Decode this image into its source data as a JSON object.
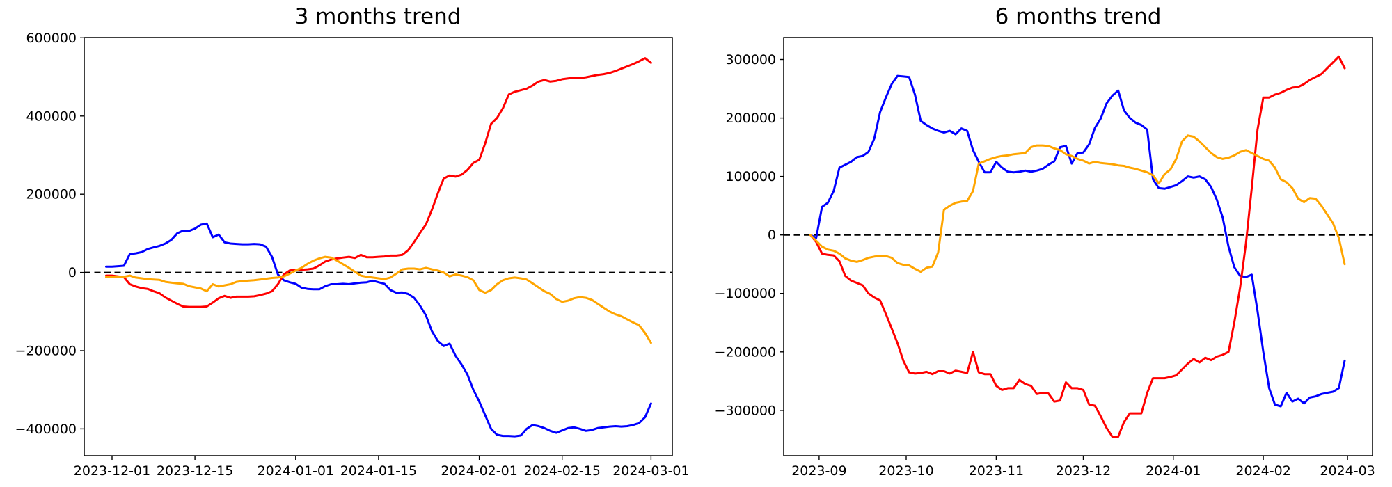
{
  "page": {
    "background": "#ffffff",
    "text_color": "#000000"
  },
  "chart_data": [
    {
      "panel": "left",
      "type": "line",
      "title": "3 months trend",
      "grid": false,
      "legend": null,
      "zero_line": {
        "value": 0,
        "style": "dashed",
        "color": "#000000"
      },
      "x_axis": {
        "day_range": [
          -3.7,
          95.6
        ],
        "tick_days": [
          1,
          15,
          32,
          46,
          63,
          77,
          92
        ],
        "tick_labels": [
          "2023-12-01",
          "2023-12-15",
          "2024-01-01",
          "2024-01-15",
          "2024-02-01",
          "2024-02-15",
          "2024-03-01"
        ]
      },
      "y_axis": {
        "ylim": [
          -468600,
          600600
        ],
        "tick_values": [
          600000,
          400000,
          200000,
          0,
          -200000,
          -400000
        ],
        "tick_labels": [
          "600000",
          "400000",
          "200000",
          "0",
          "−200000",
          "−400000"
        ]
      },
      "series": [
        {
          "name": "blue",
          "color": "#0000ff",
          "day_start": 0,
          "day_step": 1,
          "values": [
            15000,
            15000,
            16000,
            17000,
            47000,
            49000,
            52000,
            60000,
            64000,
            68000,
            74000,
            83000,
            100000,
            107000,
            106000,
            112000,
            122000,
            125000,
            90000,
            97000,
            77000,
            74000,
            73000,
            72000,
            72000,
            73000,
            72000,
            66000,
            40000,
            -5000,
            -20000,
            -25000,
            -29000,
            -39000,
            -42000,
            -43000,
            -43000,
            -35000,
            -30000,
            -30000,
            -29000,
            -30000,
            -28000,
            -26000,
            -25000,
            -21000,
            -25000,
            -29000,
            -45000,
            -52000,
            -51000,
            -55000,
            -65000,
            -85000,
            -110000,
            -150000,
            -175000,
            -188000,
            -182000,
            -213000,
            -235000,
            -261000,
            -300000,
            -330000,
            -365000,
            -400000,
            -415000,
            -418000,
            -418000,
            -419000,
            -417000,
            -400000,
            -390000,
            -393000,
            -398000,
            -405000,
            -410000,
            -404000,
            -398000,
            -396000,
            -400000,
            -405000,
            -403000,
            -398000,
            -396000,
            -394000,
            -393000,
            -394000,
            -393000,
            -390000,
            -385000,
            -370000,
            -335000
          ]
        },
        {
          "name": "red",
          "color": "#ff0000",
          "day_start": 0,
          "day_step": 1,
          "values": [
            -8000,
            -8000,
            -10000,
            -12000,
            -30000,
            -36000,
            -40000,
            -42000,
            -48000,
            -53000,
            -64000,
            -72000,
            -80000,
            -87000,
            -88000,
            -88000,
            -88000,
            -87000,
            -77000,
            -66000,
            -60000,
            -65000,
            -62000,
            -62000,
            -62000,
            -61000,
            -58000,
            -54000,
            -48000,
            -30000,
            -5000,
            5000,
            7000,
            7000,
            8000,
            10000,
            18000,
            28000,
            33000,
            36000,
            38000,
            40000,
            37000,
            45000,
            39000,
            39000,
            40000,
            41000,
            43000,
            43000,
            45000,
            57000,
            78000,
            101000,
            123000,
            160000,
            202000,
            240000,
            248000,
            245000,
            250000,
            262000,
            280000,
            288000,
            330000,
            380000,
            395000,
            420000,
            455000,
            462000,
            466000,
            470000,
            478000,
            488000,
            492000,
            488000,
            490000,
            494000,
            496000,
            498000,
            497000,
            499000,
            502000,
            505000,
            507000,
            510000,
            515000,
            521000,
            527000,
            533000,
            540000,
            548000,
            536000
          ]
        },
        {
          "name": "orange",
          "color": "#ffa500",
          "day_start": 0,
          "day_step": 1,
          "values": [
            -12000,
            -12000,
            -12000,
            -11000,
            -8000,
            -13000,
            -15000,
            -17000,
            -18000,
            -19000,
            -24000,
            -26000,
            -28000,
            -29000,
            -35000,
            -38000,
            -41000,
            -48000,
            -30000,
            -36000,
            -33000,
            -30000,
            -24000,
            -22000,
            -21000,
            -20000,
            -18000,
            -16000,
            -14000,
            -13000,
            -10000,
            -3000,
            5000,
            12000,
            22000,
            30000,
            36000,
            40000,
            38000,
            30000,
            21000,
            12000,
            2000,
            -8000,
            -11000,
            -13000,
            -15000,
            -17000,
            -13000,
            -3000,
            8000,
            10000,
            10000,
            8000,
            12000,
            8000,
            5000,
            0,
            -10000,
            -5000,
            -8000,
            -12000,
            -20000,
            -45000,
            -52000,
            -45000,
            -30000,
            -20000,
            -15000,
            -13000,
            -15000,
            -18000,
            -28000,
            -38000,
            -48000,
            -55000,
            -68000,
            -75000,
            -72000,
            -66000,
            -63000,
            -65000,
            -70000,
            -80000,
            -90000,
            -100000,
            -107000,
            -112000,
            -120000,
            -128000,
            -135000,
            -155000,
            -180000
          ]
        }
      ]
    },
    {
      "panel": "right",
      "type": "line",
      "title": "6 months trend",
      "grid": false,
      "legend": null,
      "zero_line": {
        "value": 0,
        "style": "dashed",
        "color": "#000000"
      },
      "x_axis": {
        "day_range": [
          -9.2,
          193.6
        ],
        "tick_days": [
          3,
          33,
          64,
          94,
          125,
          156,
          185
        ],
        "tick_labels": [
          "2023-09",
          "2023-10",
          "2023-11",
          "2023-12",
          "2024-01",
          "2024-02",
          "2024-03"
        ]
      },
      "y_axis": {
        "ylim": [
          -377500,
          337500
        ],
        "tick_values": [
          300000,
          200000,
          100000,
          0,
          -100000,
          -200000,
          -300000
        ],
        "tick_labels": [
          "300000",
          "200000",
          "100000",
          "0",
          "−100000",
          "−200000",
          "−300000"
        ]
      },
      "series": [
        {
          "name": "blue",
          "color": "#0000ff",
          "day_start": 0,
          "day_step": 2,
          "values": [
            0,
            -5000,
            48000,
            55000,
            75000,
            115000,
            120000,
            125000,
            133000,
            135000,
            142000,
            165000,
            210000,
            235000,
            258000,
            272000,
            271000,
            270000,
            240000,
            195000,
            188000,
            182000,
            178000,
            175000,
            178000,
            172000,
            182000,
            178000,
            145000,
            125000,
            107000,
            107000,
            125000,
            115000,
            108000,
            107000,
            108000,
            110000,
            108000,
            110000,
            113000,
            120000,
            126000,
            150000,
            152000,
            122000,
            140000,
            141000,
            155000,
            183000,
            199000,
            225000,
            238000,
            247000,
            213000,
            200000,
            192000,
            188000,
            180000,
            95000,
            80000,
            79000,
            82000,
            85000,
            92000,
            100000,
            98000,
            100000,
            95000,
            82000,
            60000,
            30000,
            -20000,
            -55000,
            -70000,
            -72000,
            -68000,
            -130000,
            -200000,
            -262000,
            -290000,
            -293000,
            -270000,
            -285000,
            -280000,
            -288000,
            -278000,
            -276000,
            -272000,
            -270000,
            -268000,
            -262000,
            -215000
          ]
        },
        {
          "name": "red",
          "color": "#ff0000",
          "day_start": 0,
          "day_step": 2,
          "values": [
            0,
            -12000,
            -32000,
            -34000,
            -35000,
            -45000,
            -70000,
            -78000,
            -82000,
            -86000,
            -100000,
            -107000,
            -112000,
            -135000,
            -160000,
            -185000,
            -215000,
            -235000,
            -237000,
            -236000,
            -234000,
            -238000,
            -233000,
            -233000,
            -237000,
            -232000,
            -234000,
            -236000,
            -200000,
            -235000,
            -238000,
            -238000,
            -258000,
            -265000,
            -262000,
            -262000,
            -248000,
            -255000,
            -258000,
            -272000,
            -270000,
            -271000,
            -285000,
            -283000,
            -252000,
            -262000,
            -262000,
            -265000,
            -290000,
            -292000,
            -310000,
            -330000,
            -345000,
            -345000,
            -320000,
            -305000,
            -305000,
            -305000,
            -270000,
            -245000,
            -245000,
            -245000,
            -243000,
            -240000,
            -230000,
            -220000,
            -212000,
            -218000,
            -210000,
            -214000,
            -208000,
            -205000,
            -200000,
            -150000,
            -90000,
            -15000,
            80000,
            180000,
            235000,
            235000,
            240000,
            243000,
            248000,
            252000,
            253000,
            258000,
            265000,
            270000,
            275000,
            285000,
            295000,
            305000,
            285000
          ]
        },
        {
          "name": "orange",
          "color": "#ffa500",
          "day_start": 0,
          "day_step": 2,
          "values": [
            0,
            -10000,
            -20000,
            -25000,
            -27000,
            -32000,
            -40000,
            -44000,
            -46000,
            -43000,
            -39000,
            -37000,
            -36000,
            -36000,
            -39000,
            -48000,
            -51000,
            -52000,
            -58000,
            -63000,
            -56000,
            -54000,
            -30000,
            43000,
            50000,
            55000,
            57000,
            58000,
            75000,
            122000,
            126000,
            130000,
            133000,
            135000,
            136000,
            138000,
            139000,
            140000,
            150000,
            153000,
            153000,
            152000,
            148000,
            145000,
            138000,
            135000,
            130000,
            127000,
            122000,
            125000,
            123000,
            122000,
            121000,
            119000,
            118000,
            115000,
            113000,
            110000,
            107000,
            102000,
            88000,
            104000,
            112000,
            130000,
            160000,
            170000,
            168000,
            160000,
            150000,
            140000,
            133000,
            130000,
            132000,
            136000,
            142000,
            145000,
            140000,
            135000,
            130000,
            127000,
            115000,
            95000,
            90000,
            80000,
            62000,
            56000,
            63000,
            62000,
            50000,
            35000,
            20000,
            -5000,
            -50000
          ]
        }
      ]
    }
  ]
}
